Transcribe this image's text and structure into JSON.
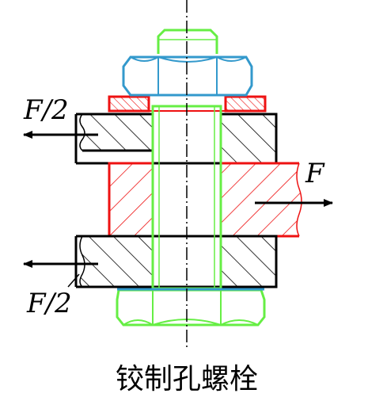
{
  "labels": {
    "force_top_left": "F/2",
    "force_right": "F",
    "force_bottom_left": "F/2",
    "caption": "铰制孔螺栓"
  },
  "colors": {
    "outline": "#000000",
    "bolt": "#66ee44",
    "nut": "#3399cc",
    "washer": "#ee1111",
    "middle_plate": "#ee1111",
    "hatch": "#000000",
    "background": "#ffffff"
  }
}
